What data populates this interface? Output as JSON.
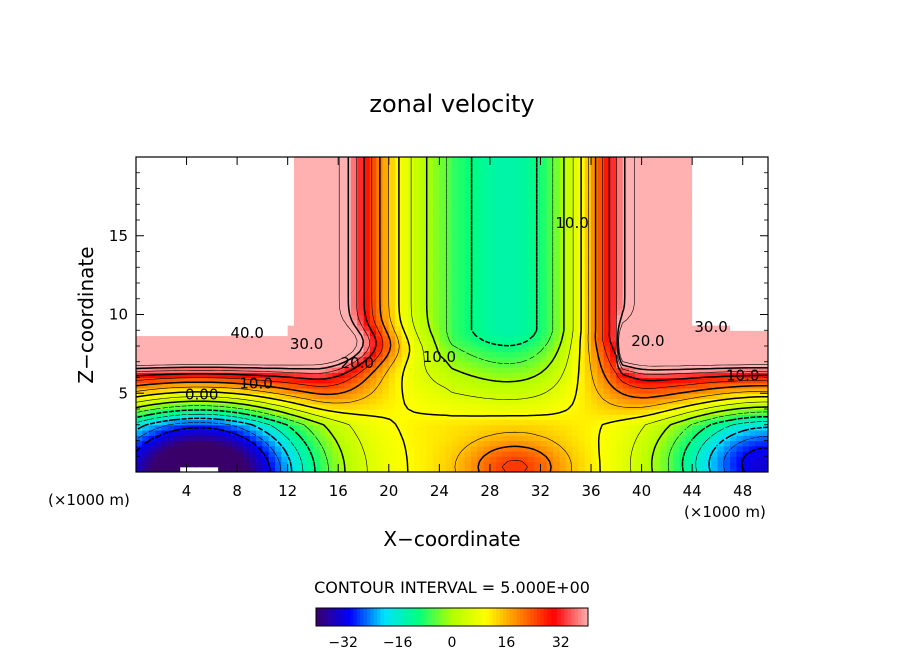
{
  "chart_data": {
    "type": "heatmap",
    "title": "zonal velocity",
    "xlabel": "X−coordinate",
    "ylabel": "Z−coordinate",
    "x_units_left": "(×1000 m)",
    "x_units_right": "(×1000 m)",
    "xlim": [
      0,
      50
    ],
    "ylim": [
      0,
      20
    ],
    "x_ticks": [
      4,
      8,
      12,
      16,
      20,
      24,
      28,
      32,
      36,
      40,
      44,
      48
    ],
    "y_ticks": [
      5,
      10,
      15
    ],
    "contour_interval_text": "CONTOUR INTERVAL = 5.000E+00",
    "contour_labels": [
      {
        "text": "40.0",
        "x": 8.8,
        "z": 8.5
      },
      {
        "text": "30.0",
        "x": 13.5,
        "z": 7.8
      },
      {
        "text": "20.0",
        "x": 17.5,
        "z": 6.6
      },
      {
        "text": "10.0",
        "x": 9.5,
        "z": 5.3
      },
      {
        "text": "0.00",
        "x": 5.2,
        "z": 4.6
      },
      {
        "text": "10.0",
        "x": 24.0,
        "z": 7.0
      },
      {
        "text": "10.0",
        "x": 34.5,
        "z": 15.5
      },
      {
        "text": "20.0",
        "x": 40.5,
        "z": 8.0
      },
      {
        "text": "30.0",
        "x": 45.5,
        "z": 8.9
      },
      {
        "text": "10.0",
        "x": 48.0,
        "z": 5.8
      }
    ],
    "colorbar": {
      "range": [
        -40,
        40
      ],
      "ticks": [
        -32,
        -16,
        0,
        16,
        32
      ],
      "tick_labels": [
        "−32",
        "−16",
        "0",
        "16",
        "32"
      ],
      "colors": [
        "#3a006a",
        "#0000ff",
        "#00e0ff",
        "#00ff80",
        "#b0ff00",
        "#ffff00",
        "#ff8000",
        "#ff0000",
        "#ffb0b0"
      ]
    },
    "masked_value_color": "#ffffff"
  }
}
